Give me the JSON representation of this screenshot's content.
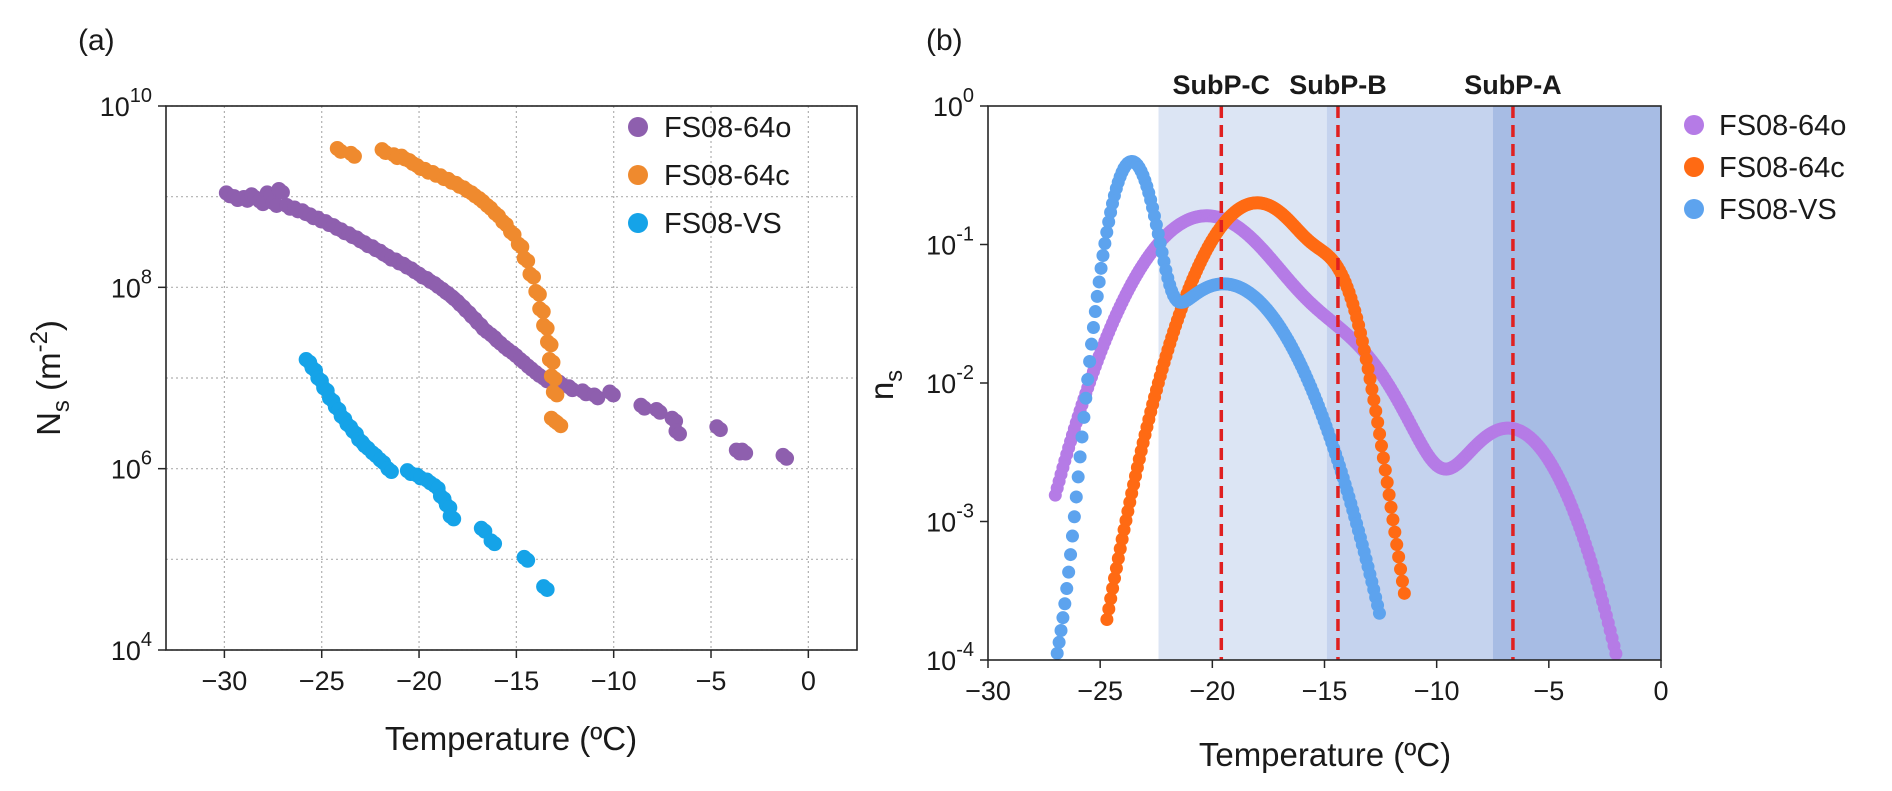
{
  "chart_data": [
    {
      "panel_label": "(a)",
      "type": "scatter",
      "xlabel": "Temperature (ºC)",
      "ylabel_main": "N",
      "ylabel_sub": "s",
      "ylabel_unit_pre": " (m",
      "ylabel_unit_sup": "-2",
      "ylabel_unit_post": ")",
      "xlim": [
        -33,
        2.5
      ],
      "ylim": [
        10000,
        10000000000
      ],
      "yscale": "log",
      "xticks": [
        -30,
        -25,
        -20,
        -15,
        -10,
        -5,
        0
      ],
      "xtick_labels": [
        "−30",
        "−25",
        "−20",
        "−15",
        "−10",
        "−5",
        "0"
      ],
      "yticks": [
        {
          "value": 10000,
          "base": "10",
          "exp": "4"
        },
        {
          "value": 1000000,
          "base": "10",
          "exp": "6"
        },
        {
          "value": 100000000,
          "base": "10",
          "exp": "8"
        },
        {
          "value": 10000000000,
          "base": "10",
          "exp": "10"
        }
      ],
      "grid": true,
      "legend_position": "top-right",
      "series": [
        {
          "name": "FS08-64o",
          "color": "#8e5fae",
          "points": [
            [
              -29.9,
              1100000000.0
            ],
            [
              -29.5,
              1000000000.0
            ],
            [
              -29.0,
              980000000.0
            ],
            [
              -28.6,
              1050000000.0
            ],
            [
              -28.2,
              900000000.0
            ],
            [
              -27.8,
              1100000000.0
            ],
            [
              -27.5,
              860000000.0
            ],
            [
              -27.2,
              1200000000.0
            ],
            [
              -26.8,
              800000000.0
            ],
            [
              -26.4,
              750000000.0
            ],
            [
              -26.0,
              700000000.0
            ],
            [
              -25.6,
              630000000.0
            ],
            [
              -25.2,
              580000000.0
            ],
            [
              -24.8,
              530000000.0
            ],
            [
              -24.4,
              480000000.0
            ],
            [
              -24.0,
              430000000.0
            ],
            [
              -23.6,
              390000000.0
            ],
            [
              -23.2,
              350000000.0
            ],
            [
              -22.8,
              310000000.0
            ],
            [
              -22.4,
              280000000.0
            ],
            [
              -22.0,
              250000000.0
            ],
            [
              -21.6,
              220000000.0
            ],
            [
              -21.2,
              200000000.0
            ],
            [
              -20.8,
              180000000.0
            ],
            [
              -20.4,
              160000000.0
            ],
            [
              -20.0,
              140000000.0
            ],
            [
              -19.6,
              125000000.0
            ],
            [
              -19.2,
              110000000.0
            ],
            [
              -18.8,
              95000000.0
            ],
            [
              -18.5,
              85000000.0
            ],
            [
              -18.2,
              75000000.0
            ],
            [
              -17.9,
              65000000.0
            ],
            [
              -17.6,
              56000000.0
            ],
            [
              -17.3,
              48000000.0
            ],
            [
              -17.0,
              41000000.0
            ],
            [
              -16.7,
              35000000.0
            ],
            [
              -16.3,
              30000000.0
            ],
            [
              -16.0,
              26000000.0
            ],
            [
              -15.6,
              22000000.0
            ],
            [
              -15.2,
              19000000.0
            ],
            [
              -14.8,
              16000000.0
            ],
            [
              -14.4,
              13500000.0
            ],
            [
              -14.0,
              11500000.0
            ],
            [
              -13.6,
              10000000.0
            ],
            [
              -12.8,
              9000000.0
            ],
            [
              -12.3,
              8000000.0
            ],
            [
              -11.6,
              7200000.0
            ],
            [
              -11.0,
              6500000.0
            ],
            [
              -10.2,
              7000000.0
            ],
            [
              -8.6,
              5000000.0
            ],
            [
              -7.8,
              4500000.0
            ],
            [
              -7.0,
              3600000.0
            ],
            [
              -6.8,
              2600000.0
            ],
            [
              -4.7,
              2900000.0
            ],
            [
              -3.7,
              1600000.0
            ],
            [
              -3.4,
              1600000.0
            ],
            [
              -1.3,
              1400000.0
            ]
          ]
        },
        {
          "name": "FS08-64c",
          "color": "#ef8a2e",
          "points": [
            [
              -24.2,
              3400000000.0
            ],
            [
              -23.5,
              3000000000.0
            ],
            [
              -21.9,
              3300000000.0
            ],
            [
              -21.3,
              2900000000.0
            ],
            [
              -20.9,
              2800000000.0
            ],
            [
              -20.5,
              2500000000.0
            ],
            [
              -20.1,
              2200000000.0
            ],
            [
              -19.7,
              2000000000.0
            ],
            [
              -19.3,
              1850000000.0
            ],
            [
              -18.9,
              1700000000.0
            ],
            [
              -18.5,
              1550000000.0
            ],
            [
              -18.1,
              1400000000.0
            ],
            [
              -17.7,
              1250000000.0
            ],
            [
              -17.3,
              1100000000.0
            ],
            [
              -16.9,
              950000000.0
            ],
            [
              -16.5,
              800000000.0
            ],
            [
              -16.1,
              660000000.0
            ],
            [
              -15.7,
              530000000.0
            ],
            [
              -15.3,
              410000000.0
            ],
            [
              -14.9,
              300000000.0
            ],
            [
              -14.6,
              210000000.0
            ],
            [
              -14.3,
              140000000.0
            ],
            [
              -14.0,
              90000000.0
            ],
            [
              -13.8,
              58000000.0
            ],
            [
              -13.6,
              38000000.0
            ],
            [
              -13.4,
              25000000.0
            ],
            [
              -13.3,
              16000000.0
            ],
            [
              -13.2,
              10500000.0
            ],
            [
              -13.1,
              7000000.0
            ],
            [
              -13.2,
              3600000.0
            ],
            [
              -12.9,
              3200000.0
            ]
          ]
        },
        {
          "name": "FS08-VS",
          "color": "#15a3e8",
          "points": [
            [
              -25.8,
              16000000.0
            ],
            [
              -25.5,
              13000000.0
            ],
            [
              -25.2,
              10000000.0
            ],
            [
              -24.9,
              7800000.0
            ],
            [
              -24.6,
              6000000.0
            ],
            [
              -24.3,
              4800000.0
            ],
            [
              -24.0,
              3800000.0
            ],
            [
              -23.7,
              3100000.0
            ],
            [
              -23.4,
              2600000.0
            ],
            [
              -23.1,
              2100000.0
            ],
            [
              -22.8,
              1800000.0
            ],
            [
              -22.4,
              1500000.0
            ],
            [
              -22.0,
              1250000.0
            ],
            [
              -21.6,
              1000000.0
            ],
            [
              -20.6,
              950000.0
            ],
            [
              -20.1,
              850000.0
            ],
            [
              -19.6,
              750000.0
            ],
            [
              -19.2,
              650000.0
            ],
            [
              -18.9,
              500000.0
            ],
            [
              -18.6,
              400000.0
            ],
            [
              -18.4,
              300000.0
            ],
            [
              -16.8,
              220000.0
            ],
            [
              -16.3,
              160000.0
            ],
            [
              -14.6,
              105000.0
            ],
            [
              -13.6,
              50000.0
            ]
          ]
        }
      ]
    },
    {
      "panel_label": "(b)",
      "type": "scatter",
      "xlabel": "Temperature (ºC)",
      "ylabel_main": "n",
      "ylabel_sub": "s",
      "xlim": [
        -30,
        0
      ],
      "ylim": [
        0.0001,
        1
      ],
      "yscale": "log",
      "xticks": [
        -30,
        -25,
        -20,
        -15,
        -10,
        -5,
        0
      ],
      "xtick_labels": [
        "−30",
        "−25",
        "−20",
        "−15",
        "−10",
        "−5",
        "0"
      ],
      "yticks": [
        {
          "value": 0.0001,
          "base": "10",
          "exp": "-4"
        },
        {
          "value": 0.001,
          "base": "10",
          "exp": "-3"
        },
        {
          "value": 0.01,
          "base": "10",
          "exp": "-2"
        },
        {
          "value": 0.1,
          "base": "10",
          "exp": "-1"
        },
        {
          "value": 1,
          "base": "10",
          "exp": "0"
        }
      ],
      "grid": false,
      "legend_position": "right, outside",
      "regions": [
        {
          "x0": -22.4,
          "x1": -14.9,
          "color": "#dce5f4"
        },
        {
          "x0": -14.9,
          "x1": -7.5,
          "color": "#c5d3ee"
        },
        {
          "x0": -7.5,
          "x1": 0,
          "color": "#a7bce4"
        }
      ],
      "annotations": [
        {
          "label": "SubP-C",
          "x": -19.6,
          "color": "#e02020"
        },
        {
          "label": "SubP-B",
          "x": -14.4,
          "color": "#e02020"
        },
        {
          "label": "SubP-A",
          "x": -6.6,
          "color": "#e02020"
        }
      ],
      "series": [
        {
          "name": "FS08-64o",
          "color": "#b57be6",
          "x_range": [
            -27,
            -1.2
          ],
          "components": [
            {
              "amp": 0.16,
              "mu": -20.3,
              "sigma": 2.2
            },
            {
              "amp": 0.022,
              "mu": -15.0,
              "sigma": 2.2
            },
            {
              "amp": 0.0047,
              "mu": -6.8,
              "sigma": 1.75
            }
          ]
        },
        {
          "name": "FS08-64c",
          "color": "#ff6a13",
          "x_range": [
            -24.7,
            -11.4
          ],
          "components": [
            {
              "amp": 0.2,
              "mu": -18.0,
              "sigma": 1.8
            },
            {
              "amp": 0.042,
              "mu": -14.6,
              "sigma": 0.85
            }
          ]
        },
        {
          "name": "FS08-VS",
          "color": "#5da3ee",
          "x_range": [
            -27,
            -12.5
          ],
          "components": [
            {
              "amp": 0.39,
              "mu": -23.6,
              "sigma": 0.72
            },
            {
              "amp": 0.052,
              "mu": -19.5,
              "sigma": 2.1
            }
          ]
        }
      ]
    }
  ]
}
